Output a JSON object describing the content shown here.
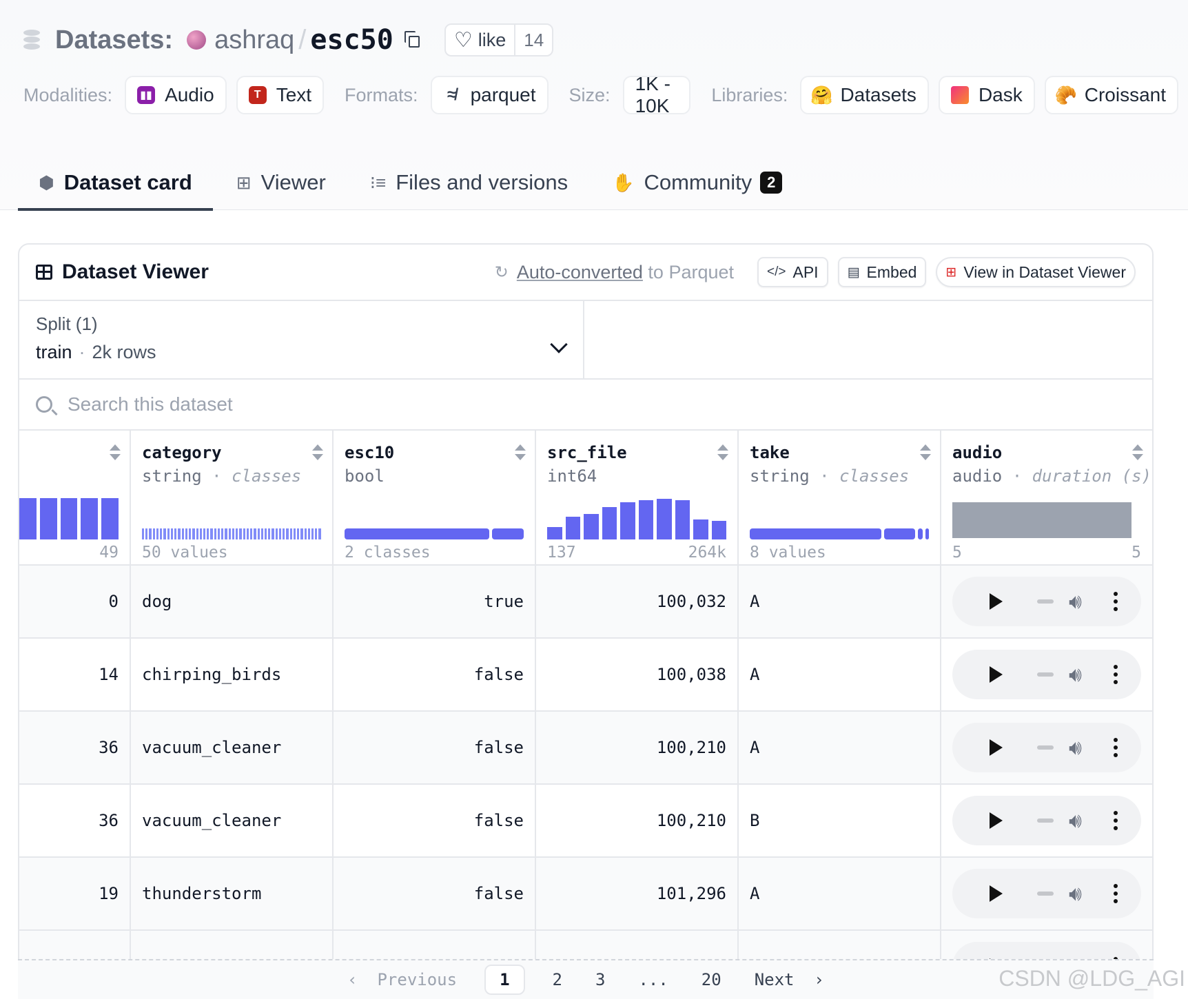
{
  "header": {
    "section": "Datasets:",
    "org": "ashraq",
    "separator": "/",
    "repo": "esc50",
    "like_label": "like",
    "like_count": "14"
  },
  "meta": {
    "modalities_label": "Modalities:",
    "modalities": [
      {
        "label": "Audio",
        "icon": "audio-icon"
      },
      {
        "label": "Text",
        "icon": "text-icon"
      }
    ],
    "formats_label": "Formats:",
    "formats": [
      {
        "label": "parquet",
        "icon": "parquet-icon"
      }
    ],
    "size_label": "Size:",
    "size": "1K - 10K",
    "libraries_label": "Libraries:",
    "libraries": [
      {
        "label": "Datasets",
        "icon": "huggingface-icon"
      },
      {
        "label": "Dask",
        "icon": "dask-icon"
      },
      {
        "label": "Croissant",
        "icon": "croissant-icon"
      }
    ]
  },
  "tabs": [
    {
      "label": "Dataset card",
      "icon": "cube-icon",
      "active": true
    },
    {
      "label": "Viewer",
      "icon": "table-icon"
    },
    {
      "label": "Files and versions",
      "icon": "files-icon"
    },
    {
      "label": "Community",
      "icon": "hand-icon",
      "badge": "2"
    }
  ],
  "viewer": {
    "title": "Dataset Viewer",
    "auto_converted_link": "Auto-converted",
    "auto_converted_rest": " to Parquet",
    "api_label": "API",
    "embed_label": "Embed",
    "view_label": "View in Dataset Viewer",
    "split_label": "Split (1)",
    "split_name": "train",
    "split_dot": "·",
    "split_rows": "2k rows",
    "search_placeholder": "Search this dataset"
  },
  "columns": [
    {
      "name": "",
      "type": "",
      "foot_left": "",
      "foot_right": "49"
    },
    {
      "name": "category",
      "type": "string",
      "type_sep": " · ",
      "type_extra": "classes",
      "foot_left": "50 values",
      "foot_right": ""
    },
    {
      "name": "esc10",
      "type": "bool",
      "foot_left": "2 classes",
      "foot_right": ""
    },
    {
      "name": "src_file",
      "type": "int64",
      "foot_left": "137",
      "foot_right": "264k"
    },
    {
      "name": "take",
      "type": "string",
      "type_sep": " · ",
      "type_extra": "classes",
      "foot_left": "8 values",
      "foot_right": ""
    },
    {
      "name": "audio",
      "type": "audio",
      "type_sep": " · ",
      "type_extra": "duration (s)",
      "foot_left": "5",
      "foot_right": "5"
    }
  ],
  "histograms": {
    "col0": [
      1,
      1,
      1,
      1,
      1
    ],
    "src_file": [
      0.3,
      0.55,
      0.62,
      0.78,
      0.9,
      0.95,
      0.98,
      0.95,
      0.48,
      0.45
    ],
    "esc10_split": [
      0.82,
      0.18
    ],
    "take_split": [
      0.77,
      0.18,
      0.03,
      0.02
    ]
  },
  "rows": [
    {
      "idx": "0",
      "category": "dog",
      "esc10": "true",
      "src_file": "100,032",
      "take": "A"
    },
    {
      "idx": "14",
      "category": "chirping_birds",
      "esc10": "false",
      "src_file": "100,038",
      "take": "A"
    },
    {
      "idx": "36",
      "category": "vacuum_cleaner",
      "esc10": "false",
      "src_file": "100,210",
      "take": "A"
    },
    {
      "idx": "36",
      "category": "vacuum_cleaner",
      "esc10": "false",
      "src_file": "100,210",
      "take": "B"
    },
    {
      "idx": "19",
      "category": "thunderstorm",
      "esc10": "false",
      "src_file": "101,296",
      "take": "A"
    }
  ],
  "pagination": {
    "previous": "Previous",
    "pages": [
      "1",
      "2",
      "3",
      "...",
      "20"
    ],
    "current": "1",
    "next": "Next"
  },
  "watermark": "CSDN @LDG_AGI",
  "colors": {
    "accent": "#6366f1",
    "audio_icon": "#8b1fa9",
    "text_icon": "#c2261c"
  }
}
